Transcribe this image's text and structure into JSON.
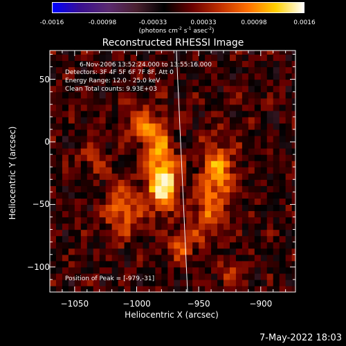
{
  "colorbar": {
    "ticks": [
      "-0.0016",
      "-0.00098",
      "-0.00033",
      "0.00033",
      "0.00098",
      "0.0016"
    ],
    "units_prefix": "(photons cm",
    "units_exp1": "-2",
    "units_mid": " s",
    "units_exp2": "-1",
    "units_mid2": " asec",
    "units_exp3": "-2",
    "units_suffix": ")",
    "colors": [
      "#0000ff",
      "#3a1090",
      "#5a2a70",
      "#4a2030",
      "#000000",
      "#6a0000",
      "#c03000",
      "#ff7000",
      "#ffd000",
      "#ffffff"
    ]
  },
  "title": "Reconstructed RHESSI Image",
  "info": {
    "line1": "6-Nov-2006 13:52:24.000 to 13:55:16.000",
    "line2": "Detectors: 3F 4F 5F 6F 7F 8F, Att 0",
    "line3": "Energy Range: 12.0 - 25.0 keV",
    "line4": "Clean    Total counts: 9.93E+03",
    "peak": "Position of Peak = [-979,-31]"
  },
  "footer_date": "7-May-2022 18:03",
  "chart_data": {
    "type": "heatmap",
    "title": "Reconstructed RHESSI Image",
    "xlabel": "Heliocentric X (arcsec)",
    "ylabel": "Heliocentric Y (arcsec)",
    "xlim": [
      -1070,
      -872
    ],
    "ylim": [
      -120,
      73
    ],
    "x_ticks": [
      -1050,
      -1000,
      -950,
      -900
    ],
    "y_ticks": [
      50,
      0,
      -50,
      -100
    ],
    "x_tick_labels": [
      "−1050",
      "−1000",
      "−950",
      "−900"
    ],
    "y_tick_labels": [
      "50",
      "0",
      "−50",
      "−100"
    ],
    "peak_position": [
      -979,
      -31
    ],
    "limb_line": [
      [
        -968,
        73
      ],
      [
        -959,
        -120
      ]
    ],
    "sources": [
      {
        "x": -979,
        "y": -31,
        "amp": 0.0016,
        "sx": 9,
        "sy": 16
      },
      {
        "x": -985,
        "y": 5,
        "amp": 0.0009,
        "sx": 8,
        "sy": 12
      },
      {
        "x": -1010,
        "y": -55,
        "amp": 0.0008,
        "sx": 10,
        "sy": 15
      },
      {
        "x": -1000,
        "y": 15,
        "amp": 0.0005,
        "sx": 8,
        "sy": 10
      },
      {
        "x": -935,
        "y": -25,
        "amp": 0.001,
        "sx": 10,
        "sy": 18
      },
      {
        "x": -945,
        "y": -60,
        "amp": 0.0007,
        "sx": 8,
        "sy": 12
      },
      {
        "x": -1035,
        "y": -15,
        "amp": 0.00045,
        "sx": 8,
        "sy": 10
      },
      {
        "x": -965,
        "y": -85,
        "amp": 0.0006,
        "sx": 9,
        "sy": 10
      },
      {
        "x": -925,
        "y": -105,
        "amp": 0.0005,
        "sx": 8,
        "sy": 8
      }
    ]
  }
}
